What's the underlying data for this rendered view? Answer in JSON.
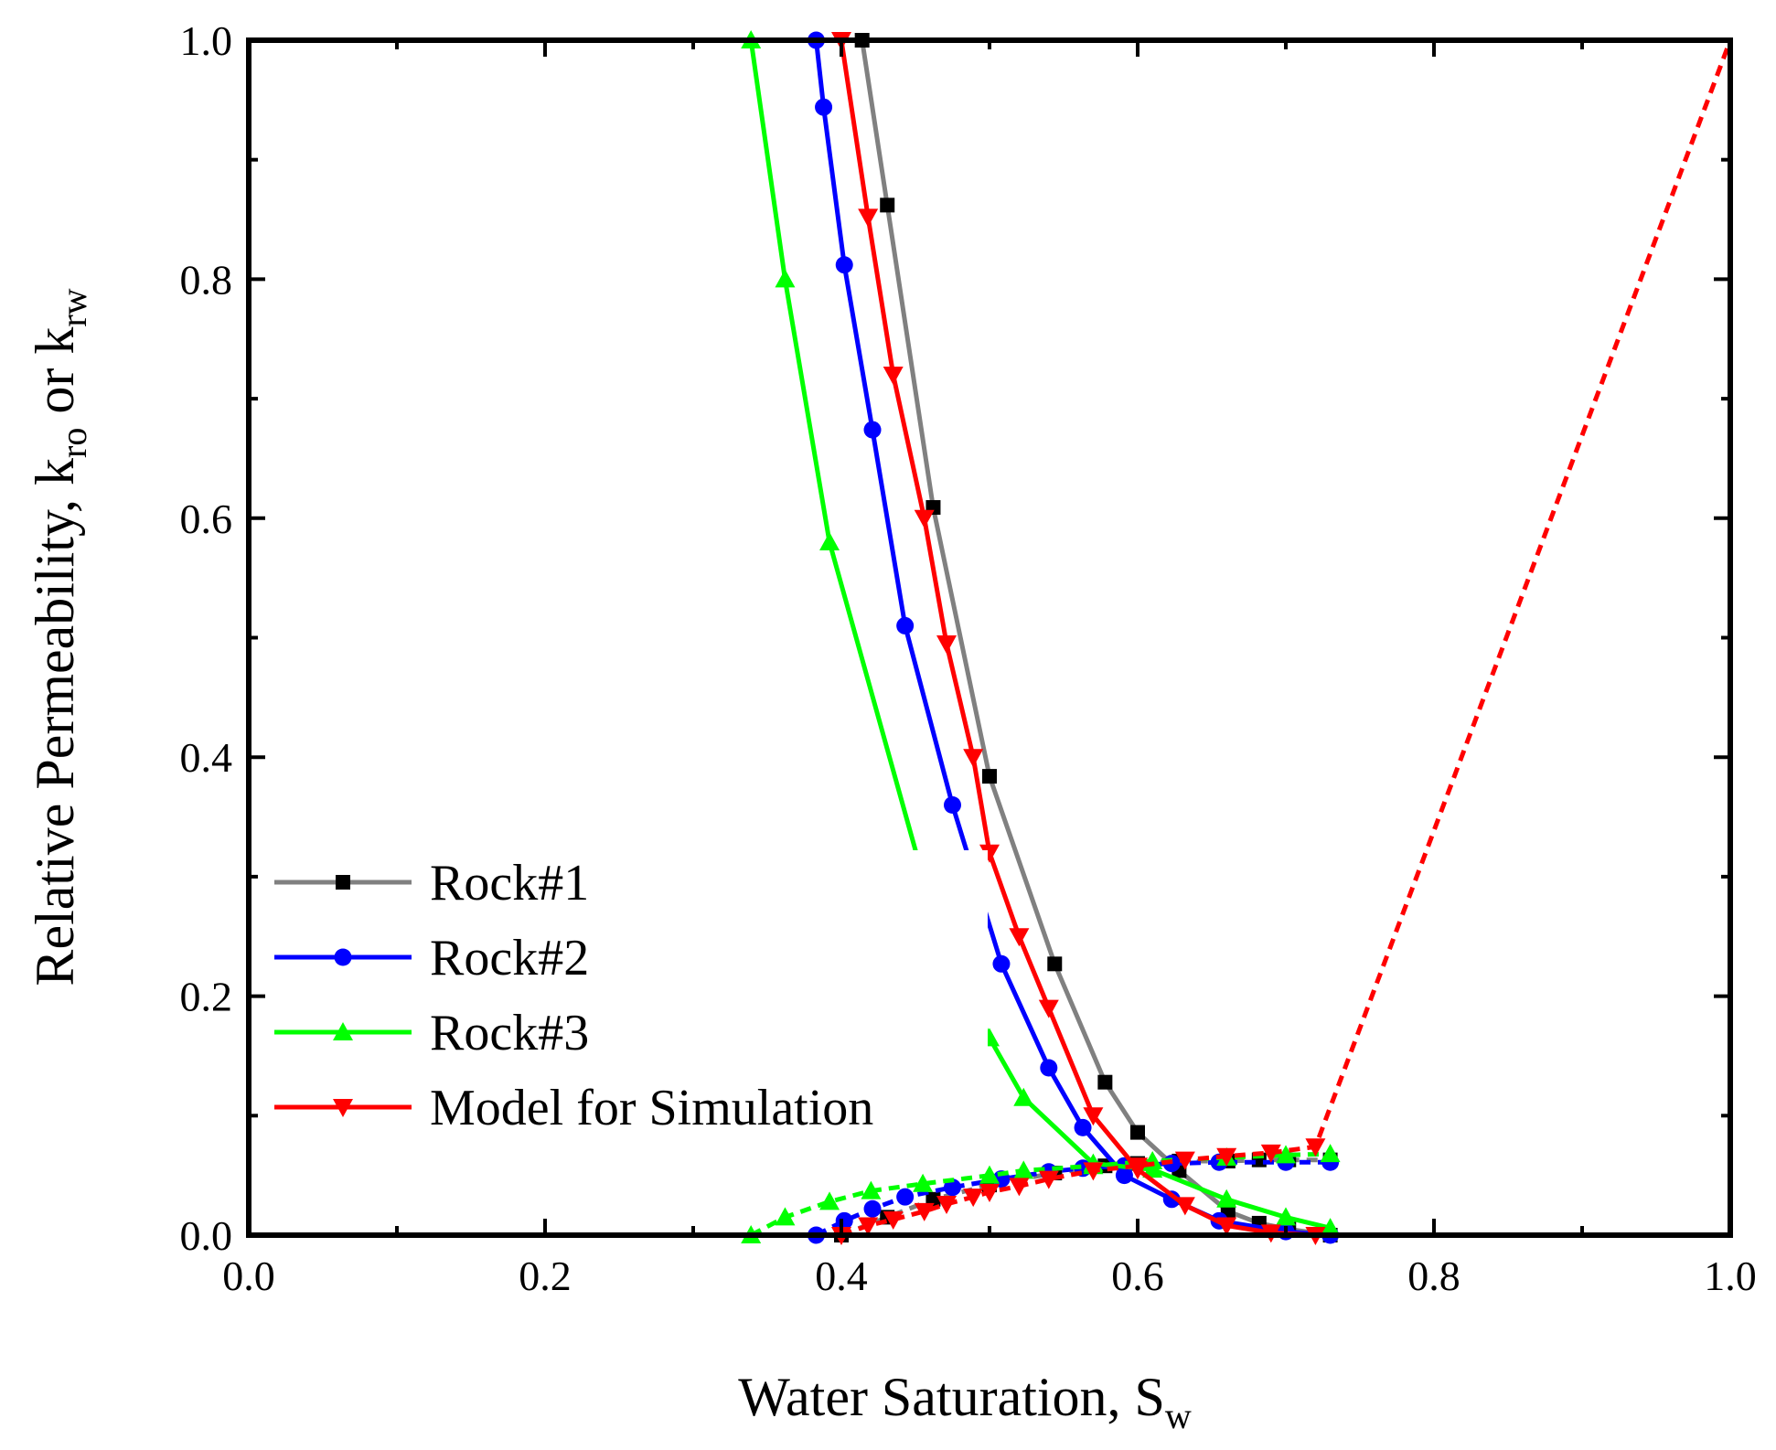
{
  "chart_data": {
    "type": "line",
    "title": "",
    "xlabel": {
      "main": "Water Saturation, S",
      "sub": "w"
    },
    "ylabel": {
      "prefix": "Relative Permeability, k",
      "sub1": "ro",
      "mid": " or k",
      "sub2": "rw"
    },
    "xlim": [
      0.0,
      1.0
    ],
    "ylim": [
      0.0,
      1.0
    ],
    "x_ticks": [
      {
        "value": 0.0,
        "label": "0.0"
      },
      {
        "value": 0.2,
        "label": "0.2"
      },
      {
        "value": 0.4,
        "label": "0.4"
      },
      {
        "value": 0.6,
        "label": "0.6"
      },
      {
        "value": 0.8,
        "label": "0.8"
      },
      {
        "value": 1.0,
        "label": "1.0"
      }
    ],
    "y_ticks": [
      {
        "value": 0.0,
        "label": "0.0"
      },
      {
        "value": 0.2,
        "label": "0.2"
      },
      {
        "value": 0.4,
        "label": "0.4"
      },
      {
        "value": 0.6,
        "label": "0.6"
      },
      {
        "value": 0.8,
        "label": "0.8"
      },
      {
        "value": 1.0,
        "label": "1.0"
      }
    ],
    "x_minor_ticks": [
      0.1,
      0.3,
      0.5,
      0.7,
      0.9
    ],
    "y_minor_ticks": [
      0.1,
      0.3,
      0.5,
      0.7,
      0.9
    ],
    "grid": false,
    "legend_position": "bottom-left",
    "series": [
      {
        "name": "Rock#1",
        "color": "#808080",
        "marker": "square",
        "kro": [
          [
            0.414,
            1.0
          ],
          [
            0.431,
            0.862
          ],
          [
            0.462,
            0.609
          ],
          [
            0.5,
            0.384
          ],
          [
            0.544,
            0.227
          ],
          [
            0.578,
            0.128
          ],
          [
            0.6,
            0.086
          ],
          [
            0.628,
            0.054
          ],
          [
            0.661,
            0.02
          ],
          [
            0.682,
            0.01
          ],
          [
            0.702,
            0.005
          ],
          [
            0.73,
            0.0
          ]
        ],
        "krw": [
          [
            0.4,
            0.0
          ],
          [
            0.431,
            0.015
          ],
          [
            0.462,
            0.03
          ],
          [
            0.5,
            0.042
          ],
          [
            0.544,
            0.052
          ],
          [
            0.578,
            0.058
          ],
          [
            0.6,
            0.06
          ],
          [
            0.628,
            0.062
          ],
          [
            0.661,
            0.062
          ],
          [
            0.682,
            0.063
          ],
          [
            0.702,
            0.063
          ],
          [
            0.73,
            0.063
          ]
        ]
      },
      {
        "name": "Rock#2",
        "color": "#0000ff",
        "marker": "circle",
        "kro": [
          [
            0.383,
            1.0
          ],
          [
            0.388,
            0.944
          ],
          [
            0.402,
            0.812
          ],
          [
            0.421,
            0.674
          ],
          [
            0.443,
            0.51
          ],
          [
            0.475,
            0.36
          ],
          [
            0.508,
            0.227
          ],
          [
            0.54,
            0.14
          ],
          [
            0.563,
            0.09
          ],
          [
            0.591,
            0.05
          ],
          [
            0.623,
            0.03
          ],
          [
            0.655,
            0.012
          ],
          [
            0.7,
            0.003
          ],
          [
            0.73,
            0.0
          ]
        ],
        "krw": [
          [
            0.383,
            0.0
          ],
          [
            0.402,
            0.012
          ],
          [
            0.421,
            0.022
          ],
          [
            0.443,
            0.032
          ],
          [
            0.475,
            0.04
          ],
          [
            0.508,
            0.047
          ],
          [
            0.54,
            0.053
          ],
          [
            0.563,
            0.056
          ],
          [
            0.591,
            0.058
          ],
          [
            0.623,
            0.06
          ],
          [
            0.655,
            0.061
          ],
          [
            0.7,
            0.061
          ],
          [
            0.73,
            0.061
          ]
        ]
      },
      {
        "name": "Rock#3",
        "color": "#00ff00",
        "marker": "triangle-up",
        "kro": [
          [
            0.339,
            1.0
          ],
          [
            0.362,
            0.8
          ],
          [
            0.392,
            0.58
          ],
          [
            0.455,
            0.3
          ],
          [
            0.5,
            0.165
          ],
          [
            0.523,
            0.115
          ],
          [
            0.57,
            0.06
          ],
          [
            0.61,
            0.055
          ],
          [
            0.66,
            0.03
          ],
          [
            0.7,
            0.015
          ],
          [
            0.73,
            0.006
          ]
        ],
        "krw": [
          [
            0.339,
            0.0
          ],
          [
            0.362,
            0.015
          ],
          [
            0.392,
            0.028
          ],
          [
            0.42,
            0.037
          ],
          [
            0.455,
            0.043
          ],
          [
            0.5,
            0.05
          ],
          [
            0.523,
            0.054
          ],
          [
            0.57,
            0.058
          ],
          [
            0.61,
            0.062
          ],
          [
            0.66,
            0.065
          ],
          [
            0.7,
            0.067
          ],
          [
            0.73,
            0.068
          ]
        ]
      },
      {
        "name": "Model for Simulation",
        "color": "#ff0000",
        "marker": "triangle-down",
        "kro": [
          [
            0.4,
            1.0
          ],
          [
            0.418,
            0.852
          ],
          [
            0.435,
            0.72
          ],
          [
            0.456,
            0.6
          ],
          [
            0.471,
            0.495
          ],
          [
            0.489,
            0.4
          ],
          [
            0.5,
            0.32
          ],
          [
            0.52,
            0.25
          ],
          [
            0.54,
            0.19
          ],
          [
            0.57,
            0.1
          ],
          [
            0.6,
            0.055
          ],
          [
            0.632,
            0.025
          ],
          [
            0.66,
            0.008
          ],
          [
            0.69,
            0.002
          ],
          [
            0.72,
            0.0
          ],
          [
            1.0,
            0.0
          ]
        ],
        "krw": [
          [
            0.4,
            0.0
          ],
          [
            0.418,
            0.008
          ],
          [
            0.435,
            0.013
          ],
          [
            0.456,
            0.02
          ],
          [
            0.471,
            0.026
          ],
          [
            0.489,
            0.032
          ],
          [
            0.5,
            0.036
          ],
          [
            0.52,
            0.041
          ],
          [
            0.54,
            0.047
          ],
          [
            0.57,
            0.054
          ],
          [
            0.6,
            0.058
          ],
          [
            0.632,
            0.063
          ],
          [
            0.66,
            0.066
          ],
          [
            0.69,
            0.069
          ],
          [
            0.72,
            0.074
          ],
          [
            1.0,
            1.0
          ]
        ]
      }
    ]
  }
}
